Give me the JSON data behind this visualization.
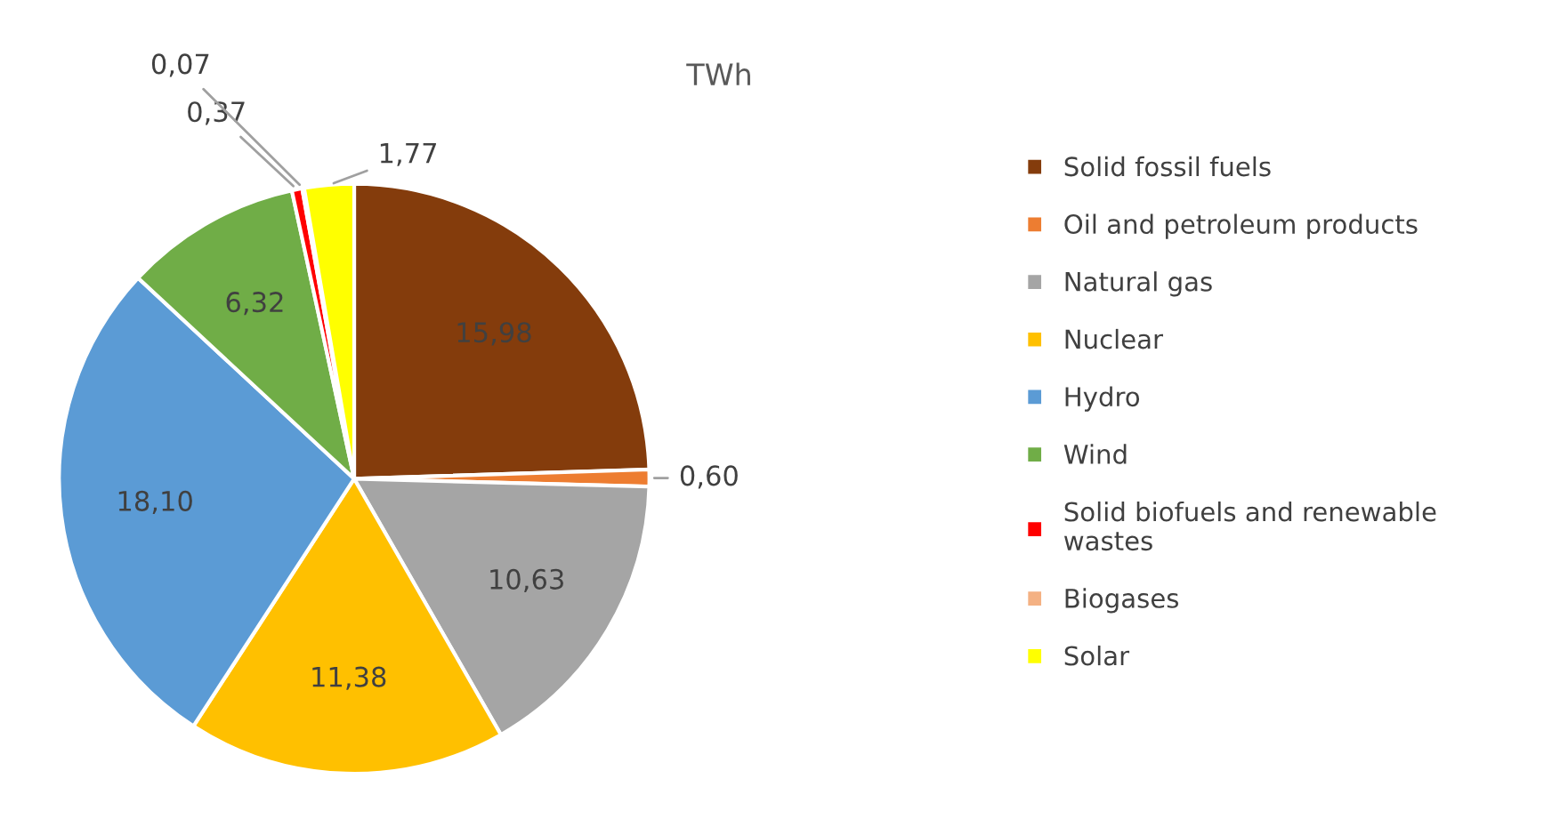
{
  "chart_data": {
    "type": "pie",
    "title": "TWh",
    "categories": [
      "Solid fossil fuels",
      "Oil and petroleum products",
      "Natural gas",
      "Nuclear",
      "Hydro",
      "Wind",
      "Solid biofuels and renewable wastes",
      "Biogases",
      "Solar"
    ],
    "values": [
      15.98,
      0.6,
      10.63,
      11.38,
      18.1,
      6.32,
      0.37,
      0.07,
      1.77
    ],
    "value_labels": [
      "15,98",
      "0,60",
      "10,63",
      "11,38",
      "18,10",
      "6,32",
      "0,37",
      "0,07",
      "1,77"
    ],
    "colors": [
      "#843c0c",
      "#ed7d31",
      "#a5a5a5",
      "#ffc000",
      "#5b9bd5",
      "#70ad47",
      "#ff0000",
      "#f4b183",
      "#ffff00"
    ],
    "legend": "right"
  }
}
